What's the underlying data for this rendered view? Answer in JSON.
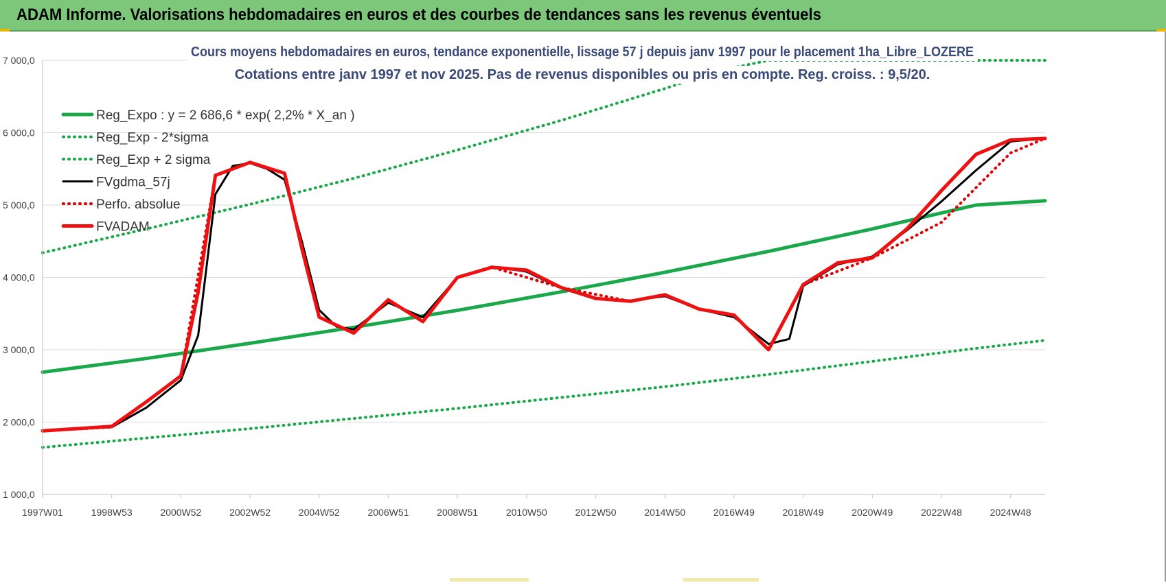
{
  "header": {
    "title": "ADAM Informe. Valorisations hebdomadaires en euros et des courbes de tendances sans les revenus éventuels"
  },
  "colors": {
    "title_bar": "#7dc77a",
    "trend_green": "#1aa84a",
    "sigma_green": "#1aa84a",
    "smoothed_black": "#000000",
    "absolute_red": "#e00000",
    "fvadam_red": "#ee1111",
    "grid": "#d9d9d9"
  },
  "chart_data": {
    "type": "line",
    "title": "Cours moyens hebdomadaires en euros, tendance exponentielle, lissage 57 j depuis janv 1997 pour le placement 1ha_Libre_LOZERE",
    "subtitle": "Cotations entre janv 1997 et nov 2025. Pas de revenus disponibles ou pris en compte. Reg. croiss. : 9,5/20.",
    "x_tick_labels": [
      "1997W01",
      "1998W53",
      "2000W52",
      "2002W52",
      "2004W52",
      "2006W51",
      "2008W51",
      "2010W50",
      "2012W50",
      "2014W50",
      "2016W49",
      "2018W49",
      "2020W49",
      "2022W48",
      "2024W48"
    ],
    "x_tick_years": [
      1997.0,
      1999.0,
      2001.0,
      2003.0,
      2005.0,
      2007.0,
      2009.0,
      2011.0,
      2013.0,
      2015.0,
      2017.0,
      2019.0,
      2021.0,
      2023.0,
      2025.0
    ],
    "xlim": [
      1997.0,
      2026.0
    ],
    "ylim": [
      1000,
      7000
    ],
    "y_ticks": [
      1000,
      2000,
      3000,
      4000,
      5000,
      6000,
      7000
    ],
    "y_tick_labels": [
      "1 000,0",
      "2 000,0",
      "3 000,0",
      "4 000,0",
      "5 000,0",
      "6 000,0",
      "7 000,0"
    ],
    "grid": true,
    "legend_position": "top-left",
    "series": [
      {
        "name": "Reg_Expo : y = 2 686,6 * exp( 2,2% *  X_an )",
        "style": "solid-thick",
        "color": "#1aa84a",
        "x": [
          1997.0,
          2000.0,
          2003.0,
          2006.0,
          2009.0,
          2012.0,
          2015.0,
          2018.0,
          2021.0,
          2024.0,
          2026.0
        ],
        "y": [
          2690,
          2880,
          3090,
          3310,
          3545,
          3800,
          4070,
          4360,
          4670,
          5000,
          5060
        ]
      },
      {
        "name": "Reg_Exp - 2*sigma",
        "style": "dotted",
        "color": "#1aa84a",
        "x": [
          1997.0,
          2000.0,
          2003.0,
          2006.0,
          2009.0,
          2012.0,
          2015.0,
          2018.0,
          2021.0,
          2024.0,
          2026.0
        ],
        "y": [
          1650,
          1780,
          1910,
          2050,
          2190,
          2340,
          2490,
          2660,
          2840,
          3020,
          3130
        ]
      },
      {
        "name": "Reg_Exp + 2 sigma",
        "style": "dotted",
        "color": "#1aa84a",
        "x": [
          1997.0,
          2000.0,
          2003.0,
          2006.0,
          2009.0,
          2012.0,
          2015.0,
          2016.6,
          2018.0,
          2021.0,
          2024.0,
          2026.0
        ],
        "y": [
          4340,
          4670,
          5010,
          5370,
          5760,
          6170,
          6610,
          6860,
          7000,
          7000,
          7000,
          7000
        ]
      },
      {
        "name": "FVgdma_57j",
        "style": "solid",
        "color": "#000000",
        "x": [
          1997.0,
          1998.0,
          1999.0,
          2000.0,
          2001.0,
          2001.5,
          2002.0,
          2002.5,
          2003.0,
          2003.5,
          2004.0,
          2004.5,
          2005.0,
          2005.5,
          2006.0,
          2007.0,
          2008.0,
          2009.0,
          2010.0,
          2011.0,
          2012.0,
          2013.0,
          2014.0,
          2015.0,
          2016.0,
          2017.0,
          2018.0,
          2018.6,
          2019.0,
          2020.0,
          2021.0,
          2022.0,
          2023.0,
          2024.0,
          2025.0,
          2026.0
        ],
        "y": [
          1880,
          1910,
          1930,
          2200,
          2580,
          3200,
          5150,
          5540,
          5580,
          5500,
          5350,
          4500,
          3550,
          3320,
          3280,
          3650,
          3450,
          4000,
          4150,
          4080,
          3850,
          3700,
          3680,
          3740,
          3560,
          3450,
          3080,
          3150,
          3880,
          4180,
          4290,
          4650,
          5050,
          5480,
          5880,
          5920
        ]
      },
      {
        "name": "Perfo. absolue",
        "style": "dotted",
        "color": "#e00000",
        "x": [
          1997.0,
          1999.0,
          2001.0,
          2002.0,
          2003.0,
          2004.0,
          2005.0,
          2006.0,
          2007.0,
          2008.0,
          2009.0,
          2010.0,
          2012.0,
          2014.0,
          2015.0,
          2016.0,
          2017.0,
          2018.0,
          2019.0,
          2021.0,
          2023.0,
          2025.0,
          2026.0
        ],
        "y": [
          1880,
          1930,
          2640,
          5410,
          5590,
          5440,
          3450,
          3230,
          3690,
          3390,
          4000,
          4140,
          3860,
          3670,
          3760,
          3560,
          3480,
          3000,
          3900,
          4270,
          4760,
          5720,
          5920
        ]
      },
      {
        "name": "FVADAM",
        "style": "solid-thick",
        "color": "#ee1111",
        "x": [
          1997.0,
          1998.0,
          1999.0,
          2000.0,
          2001.0,
          2001.5,
          2002.0,
          2003.0,
          2004.0,
          2004.5,
          2005.0,
          2006.0,
          2007.0,
          2008.0,
          2009.0,
          2010.0,
          2011.0,
          2012.0,
          2013.0,
          2014.0,
          2015.0,
          2016.0,
          2017.0,
          2018.0,
          2019.0,
          2020.0,
          2021.0,
          2022.0,
          2023.0,
          2024.0,
          2025.0,
          2026.0
        ],
        "y": [
          1880,
          1910,
          1940,
          2280,
          2640,
          3800,
          5410,
          5590,
          5440,
          4400,
          3450,
          3230,
          3690,
          3390,
          4000,
          4140,
          4100,
          3860,
          3710,
          3670,
          3760,
          3560,
          3480,
          3000,
          3900,
          4200,
          4270,
          4670,
          5200,
          5700,
          5900,
          5920
        ]
      }
    ]
  }
}
